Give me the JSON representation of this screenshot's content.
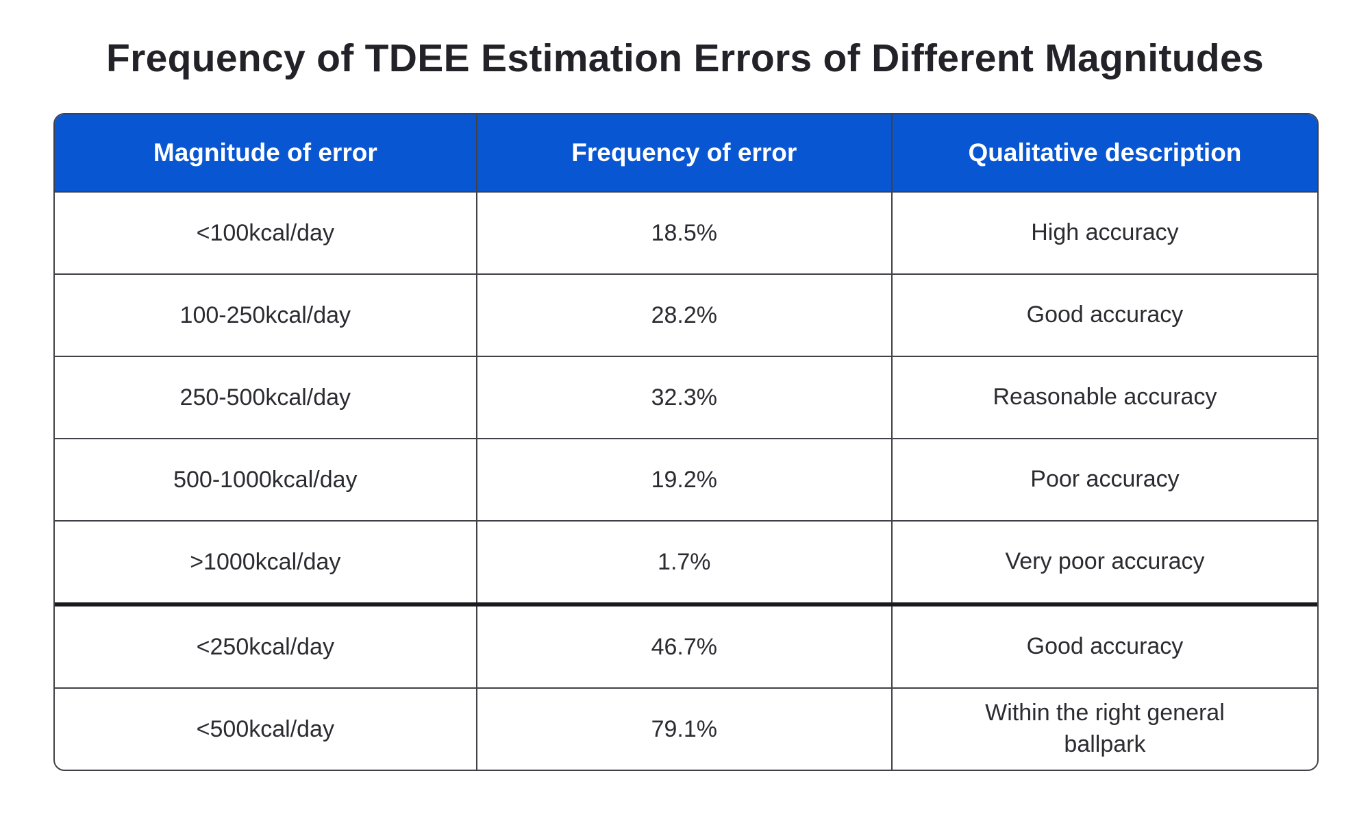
{
  "page": {
    "title": "Frequency of TDEE Estimation Errors of Different Magnitudes"
  },
  "table": {
    "headers": [
      "Magnitude of error",
      "Frequency of error",
      "Qualitative description"
    ],
    "rows": [
      [
        "<100kcal/day",
        "18.5%",
        "High accuracy"
      ],
      [
        "100-250kcal/day",
        "28.2%",
        "Good accuracy"
      ],
      [
        "250-500kcal/day",
        "32.3%",
        "Reasonable accuracy"
      ],
      [
        "500-1000kcal/day",
        "19.2%",
        "Poor accuracy"
      ],
      [
        ">1000kcal/day",
        "1.7%",
        "Very poor accuracy"
      ],
      [
        "<250kcal/day",
        "46.7%",
        "Good accuracy"
      ],
      [
        "<500kcal/day",
        "79.1%",
        "Within the right general ballpark"
      ]
    ],
    "thick_divider_before_row_index": 5
  },
  "colors": {
    "header_bg": "#0856D2",
    "header_text": "#FFFFFF",
    "cell_text": "#2B2B31",
    "grid_line": "#404046",
    "thick_divider": "#1A1A1E",
    "title_text": "#222228",
    "background": "#FFFFFF"
  },
  "chart_data": {
    "type": "table",
    "title": "Frequency of TDEE Estimation Errors of Different Magnitudes",
    "columns": [
      "Magnitude of error",
      "Frequency of error",
      "Qualitative description"
    ],
    "rows": [
      {
        "magnitude": "<100kcal/day",
        "frequency_pct": 18.5,
        "description": "High accuracy"
      },
      {
        "magnitude": "100-250kcal/day",
        "frequency_pct": 28.2,
        "description": "Good accuracy"
      },
      {
        "magnitude": "250-500kcal/day",
        "frequency_pct": 32.3,
        "description": "Reasonable accuracy"
      },
      {
        "magnitude": "500-1000kcal/day",
        "frequency_pct": 19.2,
        "description": "Poor accuracy"
      },
      {
        "magnitude": ">1000kcal/day",
        "frequency_pct": 1.7,
        "description": "Very poor accuracy"
      },
      {
        "magnitude": "<250kcal/day",
        "frequency_pct": 46.7,
        "description": "Good accuracy"
      },
      {
        "magnitude": "<500kcal/day",
        "frequency_pct": 79.1,
        "description": "Within the right general ballpark"
      }
    ],
    "layout": {
      "header_style": "blue-filled",
      "thick_divider_before_row_index": 5,
      "divider_meaning": "separates individual error bands (rows 0-4) from cumulative bands (rows 5-6)"
    }
  }
}
